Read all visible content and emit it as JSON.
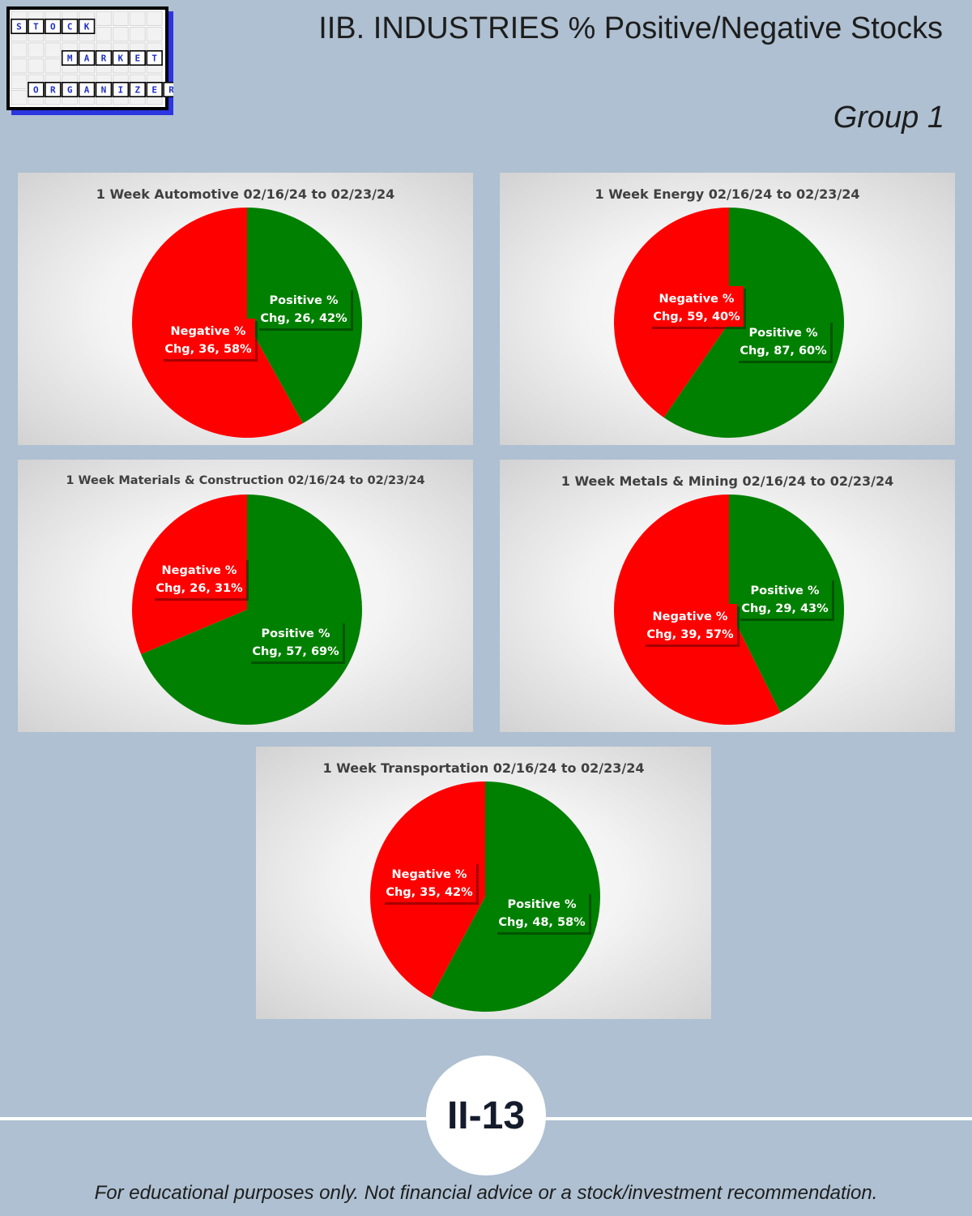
{
  "header": {
    "title": "IIB. INDUSTRIES % Positive/Negative Stocks",
    "group": "Group 1"
  },
  "logo": {
    "rows": [
      [
        "S",
        "T",
        "O",
        "C",
        "K"
      ],
      [
        "M",
        "A",
        "R",
        "K",
        "E",
        "T"
      ],
      [
        "O",
        "R",
        "G",
        "A",
        "N",
        "I",
        "Z",
        "E",
        "R"
      ]
    ]
  },
  "chart_data": [
    {
      "type": "pie",
      "title": "1 Week Automotive 02/16/24 to 02/23/24",
      "slices": [
        {
          "name": "Positive % Chg",
          "value": 26,
          "percent": 42,
          "color": "#008000",
          "label_lines": [
            "Positive %",
            "Chg, 26, 42%"
          ]
        },
        {
          "name": "Negative % Chg",
          "value": 36,
          "percent": 58,
          "color": "#ff0000",
          "label_lines": [
            "Negative %",
            "Chg, 36, 58%"
          ]
        }
      ]
    },
    {
      "type": "pie",
      "title": "1 Week Energy 02/16/24 to 02/23/24",
      "slices": [
        {
          "name": "Positive % Chg",
          "value": 87,
          "percent": 60,
          "color": "#008000",
          "label_lines": [
            "Positive %",
            "Chg, 87, 60%"
          ]
        },
        {
          "name": "Negative % Chg",
          "value": 59,
          "percent": 40,
          "color": "#ff0000",
          "label_lines": [
            "Negative %",
            "Chg, 59, 40%"
          ]
        }
      ]
    },
    {
      "type": "pie",
      "title": "1 Week Materials & Construction 02/16/24 to 02/23/24",
      "slices": [
        {
          "name": "Positive % Chg",
          "value": 57,
          "percent": 69,
          "color": "#008000",
          "label_lines": [
            "Positive %",
            "Chg, 57, 69%"
          ]
        },
        {
          "name": "Negative % Chg",
          "value": 26,
          "percent": 31,
          "color": "#ff0000",
          "label_lines": [
            "Negative %",
            "Chg, 26, 31%"
          ]
        }
      ]
    },
    {
      "type": "pie",
      "title": "1 Week Metals & Mining 02/16/24 to 02/23/24",
      "slices": [
        {
          "name": "Positive % Chg",
          "value": 29,
          "percent": 43,
          "color": "#008000",
          "label_lines": [
            "Positive %",
            "Chg, 29, 43%"
          ]
        },
        {
          "name": "Negative % Chg",
          "value": 39,
          "percent": 57,
          "color": "#ff0000",
          "label_lines": [
            "Negative %",
            "Chg, 39, 57%"
          ]
        }
      ]
    },
    {
      "type": "pie",
      "title": "1 Week Transportation 02/16/24 to 02/23/24",
      "slices": [
        {
          "name": "Positive % Chg",
          "value": 48,
          "percent": 58,
          "color": "#008000",
          "label_lines": [
            "Positive %",
            "Chg, 48, 58%"
          ]
        },
        {
          "name": "Negative % Chg",
          "value": 35,
          "percent": 42,
          "color": "#ff0000",
          "label_lines": [
            "Negative %",
            "Chg, 35, 42%"
          ]
        }
      ]
    }
  ],
  "footer": {
    "page_number": "II-13",
    "disclaimer": "For educational purposes only. Not financial advice or a stock/investment recommendation."
  }
}
